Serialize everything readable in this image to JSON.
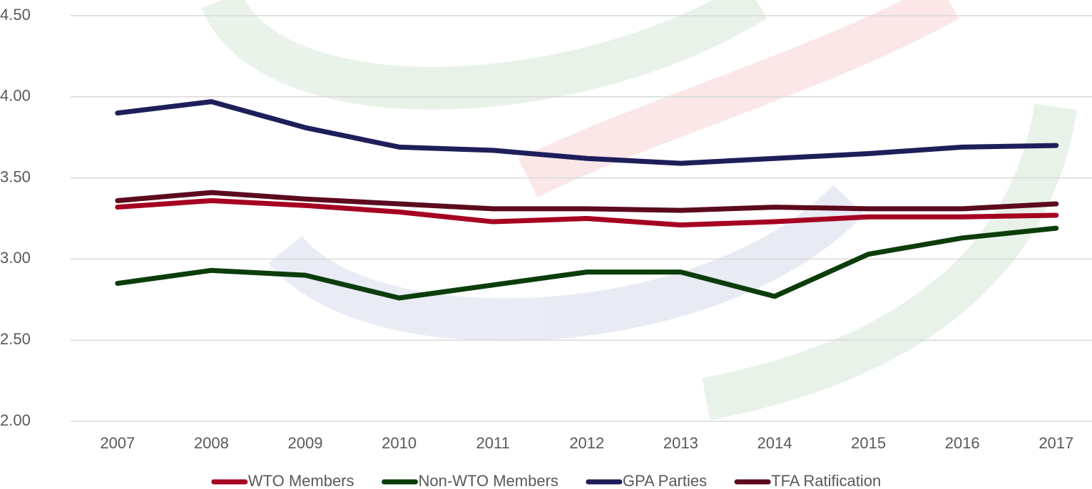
{
  "chart_data": {
    "type": "line",
    "categories": [
      "2007",
      "2008",
      "2009",
      "2010",
      "2011",
      "2012",
      "2013",
      "2014",
      "2015",
      "2016",
      "2017"
    ],
    "series": [
      {
        "name": "WTO Members",
        "color": "#a50021",
        "values": [
          3.32,
          3.36,
          3.33,
          3.29,
          3.23,
          3.25,
          3.21,
          3.23,
          3.26,
          3.26,
          3.27
        ]
      },
      {
        "name": "Non-WTO Members",
        "color": "#0b3d0b",
        "values": [
          2.85,
          2.93,
          2.9,
          2.76,
          2.84,
          2.92,
          2.92,
          2.77,
          3.03,
          3.13,
          3.19
        ]
      },
      {
        "name": "GPA Parties",
        "color": "#1e1e5a",
        "values": [
          3.9,
          3.97,
          3.81,
          3.69,
          3.67,
          3.62,
          3.59,
          3.62,
          3.65,
          3.69,
          3.7
        ]
      },
      {
        "name": "TFA Ratification",
        "color": "#5c0a1e",
        "values": [
          3.36,
          3.41,
          3.37,
          3.34,
          3.31,
          3.31,
          3.3,
          3.32,
          3.31,
          3.31,
          3.34
        ]
      }
    ],
    "ylim": [
      2,
      4.5
    ],
    "yticks": [
      {
        "value": 2,
        "label": "2.00"
      },
      {
        "value": 2.5,
        "label": "2.50"
      },
      {
        "value": 3,
        "label": "3.00"
      },
      {
        "value": 3.5,
        "label": "3.50"
      },
      {
        "value": 4,
        "label": "4.00"
      },
      {
        "value": 4.5,
        "label": "4.50"
      }
    ],
    "grid": true,
    "legend": "bottom"
  }
}
